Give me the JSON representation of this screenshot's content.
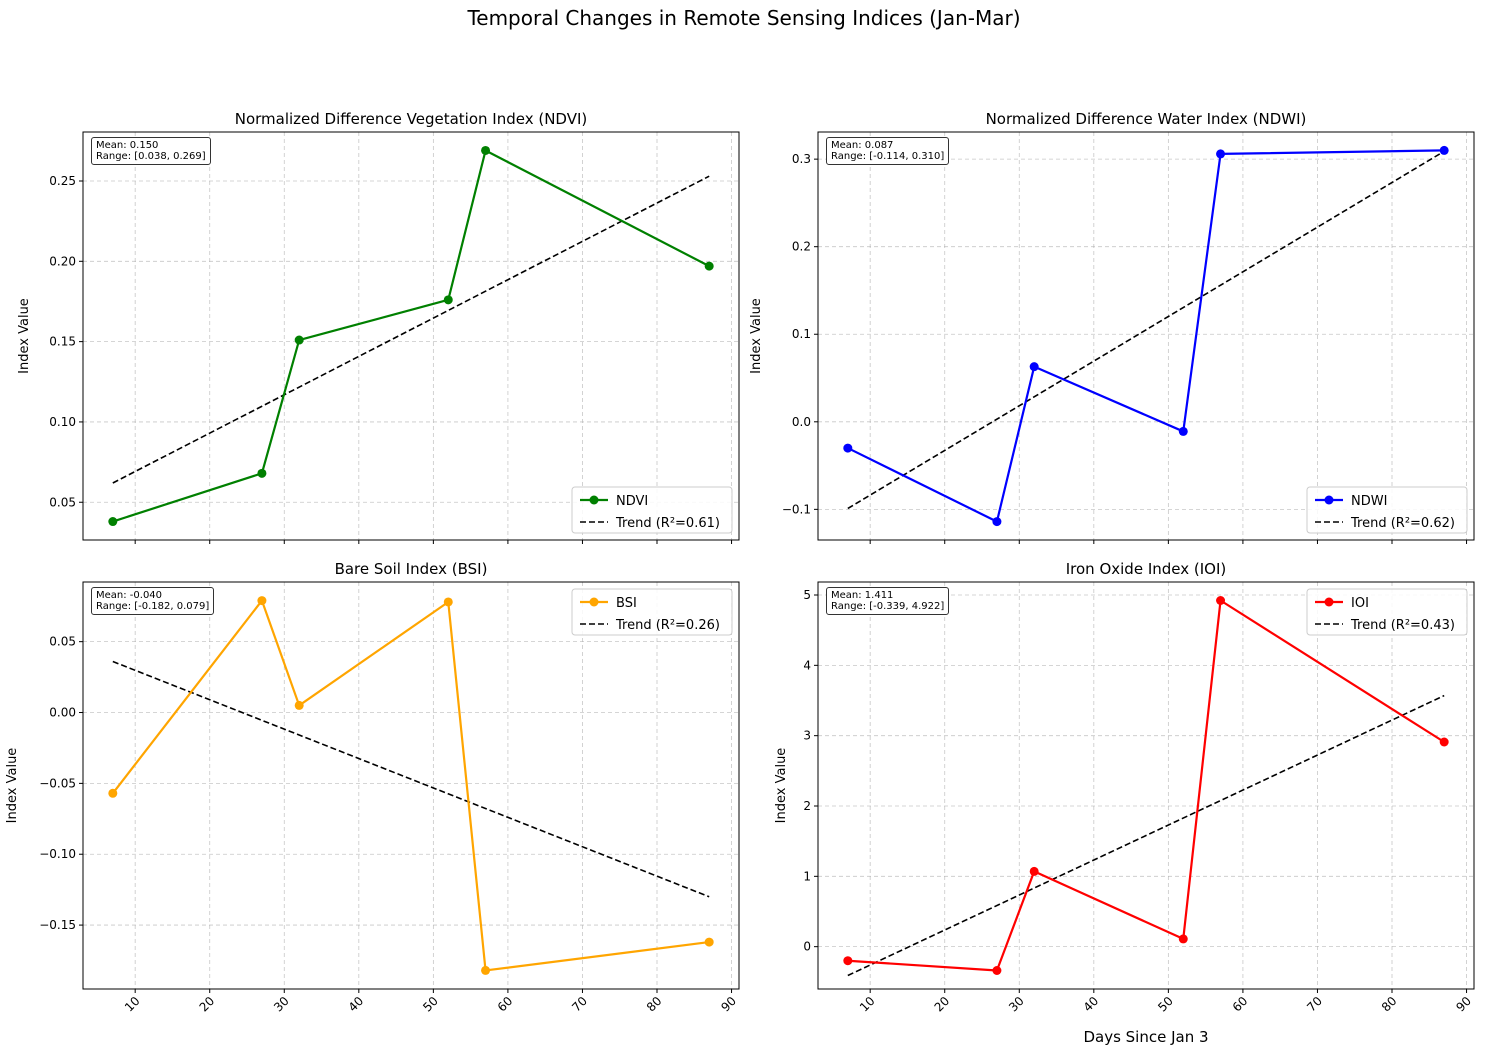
{
  "suptitle": "Temporal Changes in Remote Sensing Indices (Jan-Mar)",
  "shared_xlabel": "Days Since Jan 3",
  "chart_data": [
    {
      "type": "line",
      "title": "Normalized Difference Vegetation Index (NDVI)",
      "xlabel": "",
      "ylabel": "Index Value",
      "color": "#008000",
      "x": [
        7,
        27,
        32,
        52,
        57,
        87
      ],
      "series": [
        {
          "name": "NDVI",
          "values": [
            0.038,
            0.068,
            0.151,
            0.176,
            0.269,
            0.197
          ]
        },
        {
          "name": "Trend (R²=0.61)",
          "style": "dashed",
          "x": [
            7,
            87
          ],
          "values": [
            0.062,
            0.253
          ]
        }
      ],
      "xticks": [
        10,
        20,
        30,
        40,
        50,
        60,
        70,
        80,
        90
      ],
      "yticks": [
        0.05,
        0.1,
        0.15,
        0.2,
        0.25
      ],
      "ytick_labels": [
        "0.05",
        "0.10",
        "0.15",
        "0.20",
        "0.25"
      ],
      "xlim": [
        3,
        91
      ],
      "ylim": [
        0.0265,
        0.2805
      ],
      "grid": true,
      "legend": "lower-right",
      "stats": {
        "mean": "Mean: 0.150",
        "range": "Range: [0.038, 0.269]"
      }
    },
    {
      "type": "line",
      "title": "Normalized Difference Water Index (NDWI)",
      "xlabel": "",
      "ylabel": "Index Value",
      "color": "#0000ff",
      "x": [
        7,
        27,
        32,
        52,
        57,
        87
      ],
      "series": [
        {
          "name": "NDWI",
          "values": [
            -0.03,
            -0.114,
            0.063,
            -0.011,
            0.306,
            0.31
          ]
        },
        {
          "name": "Trend (R²=0.62)",
          "style": "dashed",
          "x": [
            7,
            87
          ],
          "values": [
            -0.099,
            0.309
          ]
        }
      ],
      "xticks": [
        10,
        20,
        30,
        40,
        50,
        60,
        70,
        80,
        90
      ],
      "yticks": [
        -0.1,
        0.0,
        0.1,
        0.2,
        0.3
      ],
      "ytick_labels": [
        "−0.1",
        "0.0",
        "0.1",
        "0.2",
        "0.3"
      ],
      "xlim": [
        3,
        91
      ],
      "ylim": [
        -0.135,
        0.331
      ],
      "grid": true,
      "legend": "lower-right",
      "stats": {
        "mean": "Mean: 0.087",
        "range": "Range: [-0.114, 0.310]"
      }
    },
    {
      "type": "line",
      "title": "Bare Soil Index (BSI)",
      "xlabel": "",
      "ylabel": "Index Value",
      "color": "#ffa500",
      "x": [
        7,
        27,
        32,
        52,
        57,
        87
      ],
      "series": [
        {
          "name": "BSI",
          "values": [
            -0.057,
            0.079,
            0.005,
            0.078,
            -0.182,
            -0.162
          ]
        },
        {
          "name": "Trend (R²=0.26)",
          "style": "dashed",
          "x": [
            7,
            87
          ],
          "values": [
            0.036,
            -0.13
          ]
        }
      ],
      "xticks": [
        10,
        20,
        30,
        40,
        50,
        60,
        70,
        80,
        90
      ],
      "yticks": [
        -0.15,
        -0.1,
        -0.05,
        0.0,
        0.05
      ],
      "ytick_labels": [
        "−0.15",
        "−0.10",
        "−0.05",
        "0.00",
        "0.05"
      ],
      "xlim": [
        3,
        91
      ],
      "ylim": [
        -0.1951,
        0.0921
      ],
      "grid": true,
      "legend": "upper-right",
      "stats": {
        "mean": "Mean: -0.040",
        "range": "Range: [-0.182, 0.079]"
      }
    },
    {
      "type": "line",
      "title": "Iron Oxide Index (IOI)",
      "xlabel": "Days Since Jan 3",
      "ylabel": "Index Value",
      "color": "#ff0000",
      "x": [
        7,
        27,
        32,
        52,
        57,
        87
      ],
      "series": [
        {
          "name": "IOI",
          "values": [
            -0.2,
            -0.339,
            1.07,
            0.11,
            4.922,
            2.91
          ]
        },
        {
          "name": "Trend (R²=0.43)",
          "style": "dashed",
          "x": [
            7,
            87
          ],
          "values": [
            -0.41,
            3.57
          ]
        }
      ],
      "xticks": [
        10,
        20,
        30,
        40,
        50,
        60,
        70,
        80,
        90
      ],
      "yticks": [
        0,
        1,
        2,
        3,
        4,
        5
      ],
      "ytick_labels": [
        "0",
        "1",
        "2",
        "3",
        "4",
        "5"
      ],
      "xlim": [
        3,
        91
      ],
      "ylim": [
        -0.602,
        5.185
      ],
      "grid": true,
      "legend": "upper-right",
      "stats": {
        "mean": "Mean: 1.411",
        "range": "Range: [-0.339, 4.922]"
      }
    }
  ]
}
